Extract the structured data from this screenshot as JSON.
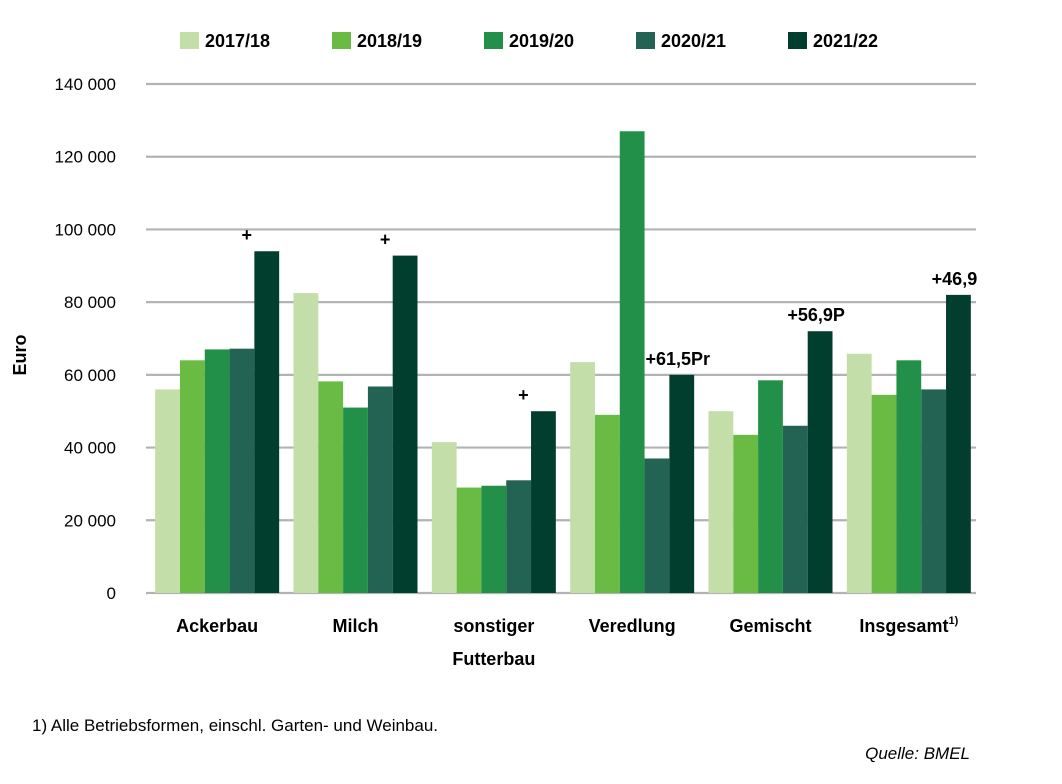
{
  "chart_data": {
    "type": "bar",
    "ylabel": "Euro",
    "ylim": [
      0,
      140000
    ],
    "yticks": [
      0,
      20000,
      40000,
      60000,
      80000,
      100000,
      120000,
      140000
    ],
    "ytick_labels": [
      "0",
      "20 000",
      "40 000",
      "60 000",
      "80 000",
      "100 000",
      "120 000",
      "140 000"
    ],
    "grid": true,
    "legend_position": "top",
    "categories": [
      {
        "line1": "Ackerbau",
        "line2": "",
        "sup": ""
      },
      {
        "line1": "Milch",
        "line2": "",
        "sup": ""
      },
      {
        "line1": "sonstiger",
        "line2": "Futterbau",
        "sup": ""
      },
      {
        "line1": "Veredlung",
        "line2": "",
        "sup": ""
      },
      {
        "line1": "Gemischt",
        "line2": "",
        "sup": ""
      },
      {
        "line1": "Insgesamt",
        "line2": "",
        "sup": "1)"
      }
    ],
    "series": [
      {
        "name": "2017/18",
        "color": "#c4dea9",
        "values": [
          56000,
          82500,
          41500,
          63500,
          50000,
          65800
        ]
      },
      {
        "name": "2018/19",
        "color": "#6abb43",
        "values": [
          64000,
          58200,
          29000,
          49000,
          43500,
          54500
        ]
      },
      {
        "name": "2019/20",
        "color": "#23904a",
        "values": [
          67000,
          51000,
          29500,
          127000,
          58500,
          64000
        ]
      },
      {
        "name": "2020/21",
        "color": "#236353",
        "values": [
          67200,
          56800,
          31000,
          37000,
          46000,
          56000
        ]
      },
      {
        "name": "2021/22",
        "color": "#023e2e",
        "values": [
          94000,
          92800,
          50000,
          60000,
          72000,
          82000
        ]
      }
    ],
    "annotations": [
      "+",
      "+",
      "+",
      "+61,5Pr",
      "+56,9P",
      "+46,9"
    ]
  },
  "footnote": "1) Alle Betriebsformen, einschl. Garten- und Weinbau.",
  "source": "Quelle: BMEL"
}
